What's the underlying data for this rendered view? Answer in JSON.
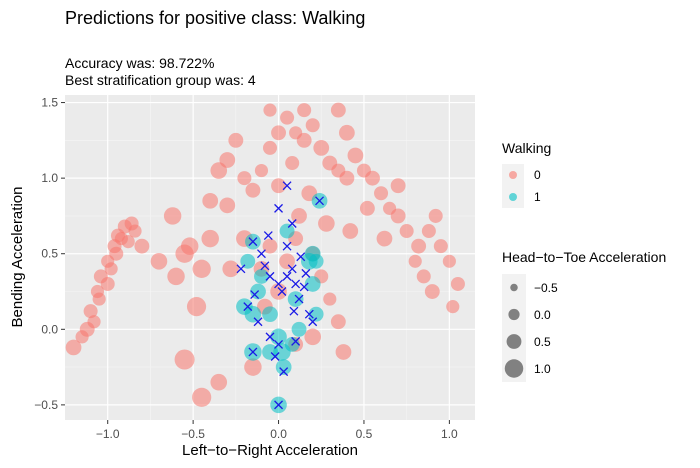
{
  "chart_data": {
    "type": "scatter",
    "title": "Predictions for positive class:  Walking",
    "subtitle_lines": [
      "Accuracy was: 98.722%",
      "Best stratification group was: 4"
    ],
    "xlabel": "Left−to−Right Acceleration",
    "ylabel": "Bending Acceleration",
    "xlim": [
      -1.25,
      1.15
    ],
    "ylim": [
      -0.6,
      1.55
    ],
    "x_ticks": [
      -1.0,
      -0.5,
      0.0,
      0.5,
      1.0
    ],
    "x_tick_labels": [
      "−1.0",
      "−0.5",
      "0.0",
      "0.5",
      "1.0"
    ],
    "y_ticks": [
      -0.5,
      0.0,
      0.5,
      1.0,
      1.5
    ],
    "y_tick_labels": [
      "−0.5",
      "0.0",
      "0.5",
      "1.0",
      "1.5"
    ],
    "grid": true,
    "color_legend": {
      "title": "Walking",
      "entries": [
        {
          "label": "0",
          "color": "#F8766D"
        },
        {
          "label": "1",
          "color": "#00BFC4"
        }
      ]
    },
    "size_legend": {
      "title": "Head−to−Toe Acceleration",
      "entries": [
        {
          "label": "−0.5",
          "value": -0.5
        },
        {
          "label": "0.0",
          "value": 0.0
        },
        {
          "label": "0.5",
          "value": 0.5
        },
        {
          "label": "1.0",
          "value": 1.0
        }
      ]
    },
    "series": [
      {
        "name": "0",
        "color": "#F8766D",
        "points": [
          [
            -1.1,
            0.12,
            0.1
          ],
          [
            -1.05,
            0.2,
            0.0
          ],
          [
            -1.0,
            0.3,
            0.1
          ],
          [
            -0.98,
            0.4,
            0.0
          ],
          [
            -0.95,
            0.5,
            0.1
          ],
          [
            -0.92,
            0.6,
            0.0
          ],
          [
            -0.9,
            0.68,
            0.1
          ],
          [
            -1.08,
            0.05,
            0.0
          ],
          [
            -1.12,
            0.0,
            0.2
          ],
          [
            -1.04,
            0.35,
            0.1
          ],
          [
            -1.0,
            0.45,
            0.0
          ],
          [
            -0.96,
            0.55,
            0.1
          ],
          [
            -0.88,
            0.58,
            0.0
          ],
          [
            -0.86,
            0.7,
            0.1
          ],
          [
            -1.15,
            -0.05,
            0.0
          ],
          [
            -1.2,
            -0.12,
            0.3
          ],
          [
            -1.06,
            0.25,
            0.0
          ],
          [
            -0.94,
            0.62,
            0.1
          ],
          [
            -0.84,
            0.65,
            0.0
          ],
          [
            -0.8,
            0.55,
            0.2
          ],
          [
            -0.7,
            0.45,
            0.4
          ],
          [
            -0.6,
            0.35,
            0.5
          ],
          [
            -0.55,
            0.5,
            0.6
          ],
          [
            -0.62,
            0.75,
            0.5
          ],
          [
            -0.52,
            0.55,
            0.5
          ],
          [
            -0.4,
            0.85,
            0.3
          ],
          [
            -0.35,
            1.05,
            0.4
          ],
          [
            -0.3,
            1.12,
            0.3
          ],
          [
            -0.25,
            1.25,
            0.2
          ],
          [
            -0.2,
            1.0,
            0.1
          ],
          [
            -0.15,
            0.92,
            0.2
          ],
          [
            -0.1,
            1.05,
            0.0
          ],
          [
            -0.05,
            1.2,
            0.1
          ],
          [
            0.0,
            1.3,
            0.2
          ],
          [
            0.05,
            1.4,
            0.1
          ],
          [
            0.1,
            1.3,
            0.0
          ],
          [
            0.15,
            1.25,
            0.2
          ],
          [
            0.2,
            1.35,
            0.1
          ],
          [
            0.25,
            1.2,
            0.3
          ],
          [
            0.3,
            1.1,
            0.2
          ],
          [
            0.35,
            1.05,
            0.1
          ],
          [
            0.4,
            1.0,
            0.2
          ],
          [
            0.45,
            1.15,
            0.3
          ],
          [
            0.5,
            1.05,
            0.1
          ],
          [
            0.55,
            1.0,
            0.2
          ],
          [
            0.6,
            0.9,
            0.1
          ],
          [
            0.65,
            0.8,
            0.0
          ],
          [
            0.7,
            0.75,
            0.2
          ],
          [
            0.75,
            0.65,
            0.1
          ],
          [
            0.8,
            0.45,
            0.0
          ],
          [
            0.85,
            0.35,
            0.1
          ],
          [
            0.9,
            0.25,
            0.2
          ],
          [
            0.95,
            0.55,
            0.1
          ],
          [
            1.0,
            0.45,
            0.0
          ],
          [
            1.05,
            0.3,
            0.1
          ],
          [
            1.02,
            0.15,
            0.0
          ],
          [
            0.92,
            0.75,
            0.1
          ],
          [
            0.7,
            0.95,
            0.2
          ],
          [
            0.4,
            1.3,
            0.3
          ],
          [
            0.35,
            1.45,
            0.2
          ],
          [
            0.15,
            1.45,
            0.1
          ],
          [
            -0.05,
            1.45,
            0.0
          ],
          [
            -0.45,
            0.4,
            0.6
          ],
          [
            -0.48,
            0.15,
            0.7
          ],
          [
            -0.55,
            -0.2,
            0.8
          ],
          [
            -0.45,
            -0.45,
            0.7
          ],
          [
            -0.35,
            -0.35,
            0.4
          ],
          [
            -0.15,
            -0.25,
            0.5
          ],
          [
            0.0,
            0.25,
            0.4
          ],
          [
            0.05,
            0.45,
            0.3
          ],
          [
            0.1,
            0.6,
            0.2
          ],
          [
            0.12,
            0.75,
            0.3
          ],
          [
            -0.05,
            0.55,
            0.2
          ],
          [
            -0.1,
            0.4,
            0.3
          ],
          [
            -0.2,
            0.6,
            0.4
          ],
          [
            0.2,
            0.5,
            0.2
          ],
          [
            0.25,
            0.35,
            0.1
          ],
          [
            0.3,
            0.2,
            0.0
          ],
          [
            0.35,
            0.05,
            0.2
          ],
          [
            0.38,
            -0.15,
            0.3
          ],
          [
            0.2,
            -0.05,
            0.4
          ],
          [
            0.1,
            -0.1,
            0.2
          ],
          [
            -0.08,
            0.15,
            0.3
          ],
          [
            0.0,
            0.95,
            0.2
          ],
          [
            0.08,
            1.1,
            0.1
          ],
          [
            -0.3,
            0.82,
            0.3
          ],
          [
            -0.4,
            0.6,
            0.5
          ],
          [
            -0.28,
            0.4,
            0.4
          ],
          [
            0.18,
            0.9,
            0.3
          ],
          [
            0.28,
            0.7,
            0.4
          ],
          [
            0.42,
            0.65,
            0.3
          ],
          [
            0.52,
            0.8,
            0.2
          ],
          [
            0.62,
            0.6,
            0.3
          ],
          [
            0.82,
            0.55,
            0.2
          ],
          [
            0.88,
            0.65,
            0.1
          ]
        ]
      },
      {
        "name": "1",
        "color": "#00BFC4",
        "points": [
          [
            -0.15,
            0.58,
            0.3
          ],
          [
            -0.18,
            0.45,
            0.2
          ],
          [
            -0.15,
            0.1,
            0.4
          ],
          [
            -0.12,
            0.25,
            0.3
          ],
          [
            -0.1,
            0.35,
            0.2
          ],
          [
            -0.05,
            0.1,
            0.3
          ],
          [
            0.0,
            -0.05,
            0.4
          ],
          [
            0.02,
            -0.15,
            0.5
          ],
          [
            0.03,
            -0.25,
            0.3
          ],
          [
            0.08,
            -0.1,
            0.2
          ],
          [
            0.1,
            0.2,
            0.3
          ],
          [
            0.12,
            0.0,
            0.2
          ],
          [
            0.18,
            0.45,
            0.4
          ],
          [
            0.2,
            0.3,
            0.3
          ],
          [
            0.22,
            0.1,
            0.2
          ],
          [
            0.24,
            0.85,
            0.3
          ],
          [
            0.22,
            0.45,
            0.2
          ],
          [
            -0.2,
            0.15,
            0.4
          ],
          [
            -0.15,
            -0.15,
            0.5
          ],
          [
            -0.05,
            -0.15,
            0.3
          ],
          [
            0.05,
            0.65,
            0.2
          ],
          [
            0.0,
            -0.5,
            0.4
          ],
          [
            0.2,
            0.5,
            0.3
          ]
        ]
      }
    ],
    "x_markers": [
      [
        -0.15,
        0.58
      ],
      [
        -0.1,
        0.5
      ],
      [
        -0.08,
        0.42
      ],
      [
        -0.05,
        0.35
      ],
      [
        0.0,
        0.3
      ],
      [
        0.02,
        0.25
      ],
      [
        0.05,
        0.35
      ],
      [
        0.08,
        0.4
      ],
      [
        0.1,
        0.3
      ],
      [
        0.12,
        0.2
      ],
      [
        0.15,
        0.28
      ],
      [
        0.18,
        0.1
      ],
      [
        0.2,
        0.05
      ],
      [
        0.0,
        -0.1
      ],
      [
        -0.05,
        -0.05
      ],
      [
        -0.12,
        0.05
      ],
      [
        -0.15,
        -0.15
      ],
      [
        -0.18,
        0.15
      ],
      [
        0.03,
        -0.28
      ],
      [
        0.05,
        0.55
      ],
      [
        0.08,
        0.7
      ],
      [
        0.05,
        0.95
      ],
      [
        0.0,
        0.8
      ],
      [
        0.24,
        0.85
      ],
      [
        -0.02,
        -0.18
      ],
      [
        0.1,
        -0.08
      ],
      [
        -0.06,
        0.62
      ],
      [
        0.13,
        0.48
      ],
      [
        0.0,
        -0.5
      ],
      [
        -0.22,
        0.4
      ],
      [
        -0.14,
        0.23
      ],
      [
        0.09,
        0.12
      ],
      [
        0.16,
        0.37
      ]
    ]
  }
}
